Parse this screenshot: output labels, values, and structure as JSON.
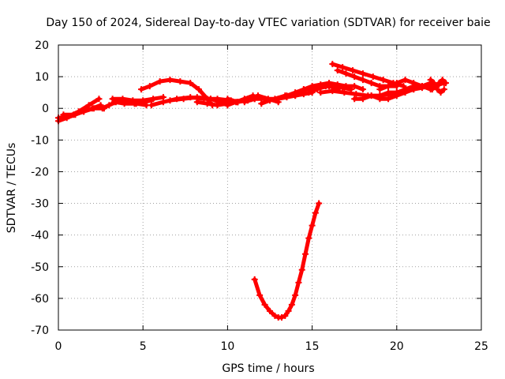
{
  "chart_data": {
    "type": "scatter",
    "title": "Day 150 of 2024, Sidereal Day-to-day VTEC variation (SDTVAR) for receiver baie",
    "xlabel": "GPS time / hours",
    "ylabel": "SDTVAR / TECUs",
    "xlim": [
      0,
      25
    ],
    "ylim": [
      -70,
      20
    ],
    "xticks": [
      0,
      5,
      10,
      15,
      20,
      25
    ],
    "yticks": [
      20,
      10,
      0,
      -10,
      -20,
      -30,
      -40,
      -50,
      -60,
      -70
    ],
    "grid": true,
    "series": [
      {
        "name": "SDTVAR",
        "color": "#ff0000",
        "arcs": [
          {
            "x": [
              0.0,
              0.5,
              1.0,
              1.5,
              2.0,
              2.5
            ],
            "y": [
              -4,
              -3,
              -2,
              -1,
              0,
              1
            ]
          },
          {
            "x": [
              0.0,
              0.6,
              1.2,
              1.8,
              2.4
            ],
            "y": [
              -3,
              -2.5,
              -1,
              1,
              3
            ]
          },
          {
            "x": [
              0.3,
              0.9,
              1.5,
              2.1,
              2.7
            ],
            "y": [
              -2,
              -2,
              -1,
              0,
              0
            ]
          },
          {
            "x": [
              2.6,
              3.0,
              3.4,
              3.8,
              4.2,
              4.6,
              5.2
            ],
            "y": [
              0,
              1,
              2,
              2,
              2,
              1.5,
              1
            ]
          },
          {
            "x": [
              3.2,
              3.8,
              4.4,
              5.0,
              5.6,
              6.2
            ],
            "y": [
              3,
              3,
              2.5,
              2.5,
              3,
              3.5
            ]
          },
          {
            "x": [
              3.3,
              3.9,
              4.5,
              5.1,
              5.5
            ],
            "y": [
              2,
              1.5,
              1.5,
              2,
              2.5
            ]
          },
          {
            "x": [
              4.9,
              5.4,
              6.0,
              6.6,
              7.2,
              7.8,
              8.3,
              8.8,
              9.1
            ],
            "y": [
              6,
              7,
              8.5,
              9,
              8.5,
              8,
              6,
              3,
              1
            ]
          },
          {
            "x": [
              5.5,
              6.2,
              7.0,
              7.8,
              8.6,
              9.4,
              10.2
            ],
            "y": [
              1,
              2,
              3,
              3.5,
              3,
              3,
              2.5
            ]
          },
          {
            "x": [
              6.6,
              7.4,
              8.2,
              9.0,
              9.8,
              10.6,
              11.4
            ],
            "y": [
              2.5,
              3,
              3.5,
              3,
              2,
              2,
              3
            ]
          },
          {
            "x": [
              8.2,
              8.8,
              9.4,
              10.0,
              10.6,
              11.2,
              11.6
            ],
            "y": [
              2,
              1.5,
              1,
              1.5,
              2,
              2.5,
              3
            ]
          },
          {
            "x": [
              9.0,
              9.5,
              10.0,
              10.5,
              11.0,
              11.5,
              12.0
            ],
            "y": [
              3,
              2,
              1,
              2,
              3,
              4,
              3
            ]
          },
          {
            "x": [
              10.0,
              10.6,
              11.2,
              11.8,
              12.4,
              13.0
            ],
            "y": [
              3,
              2,
              3,
              4,
              3,
              2
            ]
          },
          {
            "x": [
              11.0,
              11.6,
              12.2,
              12.8,
              13.4,
              14.0,
              14.6
            ],
            "y": [
              2,
              3,
              3,
              3,
              4,
              4,
              5
            ]
          },
          {
            "x": [
              12.0,
              12.5,
              13.0,
              13.5,
              14.0,
              14.5,
              15.0
            ],
            "y": [
              1.5,
              2.5,
              3,
              3.5,
              4,
              4.5,
              5
            ]
          },
          {
            "x": [
              13.5,
              14.0,
              14.5,
              15.0,
              15.5,
              16.0,
              16.5
            ],
            "y": [
              4,
              5,
              6,
              6,
              6.5,
              7,
              6
            ]
          },
          {
            "x": [
              14.5,
              15.0,
              15.5,
              16.0,
              16.5,
              17.0,
              17.5,
              18.0
            ],
            "y": [
              6,
              7,
              7.5,
              8,
              7.5,
              7,
              7,
              6
            ]
          },
          {
            "x": [
              14.8,
              15.3,
              15.8,
              16.3,
              16.8,
              17.3
            ],
            "y": [
              5,
              6,
              7,
              7,
              6.5,
              6
            ]
          },
          {
            "x": [
              15.5,
              16.2,
              16.9,
              17.6,
              18.3,
              19.0,
              19.7
            ],
            "y": [
              5,
              5.5,
              5,
              4.5,
              4,
              4,
              4.5
            ]
          },
          {
            "x": [
              16.2,
              16.8,
              17.4,
              18.0,
              18.6,
              19.2,
              19.8,
              20.4
            ],
            "y": [
              14,
              13,
              12,
              11,
              10,
              9,
              8,
              7
            ]
          },
          {
            "x": [
              16.5,
              17.0,
              17.5,
              18.0,
              18.5,
              19.0,
              19.5,
              20.0
            ],
            "y": [
              12,
              11,
              10,
              9,
              8,
              7,
              7,
              7
            ]
          },
          {
            "x": [
              17.5,
              18.0,
              18.5,
              19.0,
              19.5,
              20.0,
              20.5,
              21.0
            ],
            "y": [
              3,
              3,
              4,
              4,
              5,
              5,
              6,
              7
            ]
          },
          {
            "x": [
              18.5,
              19.0,
              19.5,
              20.0,
              20.5,
              21.0,
              21.5,
              22.0
            ],
            "y": [
              4,
              3,
              3,
              4,
              5,
              6,
              7,
              8
            ]
          },
          {
            "x": [
              19.0,
              19.5,
              20.0,
              20.5,
              21.0,
              21.5,
              22.0
            ],
            "y": [
              6,
              7,
              8,
              9,
              8,
              7,
              6
            ]
          },
          {
            "x": [
              19.5,
              20.0,
              20.5,
              21.0,
              21.5,
              22.0,
              22.5,
              22.8
            ],
            "y": [
              5,
              5,
              5.5,
              6,
              6.5,
              7,
              7.5,
              8
            ]
          },
          {
            "x": [
              22.0,
              22.2,
              22.4,
              22.6,
              22.8
            ],
            "y": [
              9,
              8,
              6,
              5,
              6
            ]
          },
          {
            "x": [
              22.1,
              22.3,
              22.5,
              22.7,
              22.9
            ],
            "y": [
              6,
              7,
              8,
              9,
              8
            ]
          },
          {
            "x": [
              11.6,
              11.9,
              12.2,
              12.5,
              12.8,
              13.0,
              13.2,
              13.4,
              13.6,
              13.8,
              14.0,
              14.2,
              14.4,
              14.6,
              14.8,
              15.0,
              15.2,
              15.4
            ],
            "y": [
              -54,
              -59,
              -62,
              -64,
              -65.5,
              -66,
              -66,
              -65.5,
              -64,
              -62,
              -59,
              -55,
              -51,
              -46,
              -41,
              -37,
              -33,
              -30
            ]
          }
        ]
      }
    ]
  }
}
